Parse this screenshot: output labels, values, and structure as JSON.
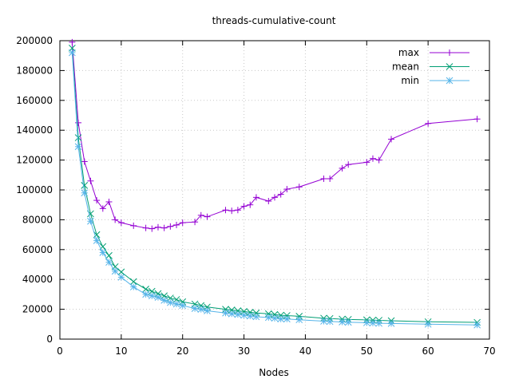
{
  "chart_data": {
    "type": "line",
    "title": "threads-cumulative-count",
    "xlabel": "Nodes",
    "ylabel": "",
    "xlim": [
      0,
      70
    ],
    "ylim": [
      0,
      200000
    ],
    "x_ticks": [
      "0",
      "10",
      "20",
      "30",
      "40",
      "50",
      "60",
      "70"
    ],
    "y_ticks": [
      "0",
      "20000",
      "40000",
      "60000",
      "80000",
      "100000",
      "120000",
      "140000",
      "160000",
      "180000",
      "200000"
    ],
    "grid": true,
    "legend_position": "top-right",
    "series": [
      {
        "name": "max",
        "color": "#9400d3",
        "marker": "plus",
        "points": [
          [
            2,
            199000
          ],
          [
            3,
            145000
          ],
          [
            4,
            119000
          ],
          [
            5,
            106000
          ],
          [
            6,
            93000
          ],
          [
            7,
            87500
          ],
          [
            8,
            92000
          ],
          [
            9,
            80000
          ],
          [
            10,
            78000
          ],
          [
            12,
            76000
          ],
          [
            14,
            74500
          ],
          [
            15,
            74000
          ],
          [
            16,
            75000
          ],
          [
            17,
            74500
          ],
          [
            18,
            75500
          ],
          [
            19,
            76500
          ],
          [
            20,
            78000
          ],
          [
            22,
            78500
          ],
          [
            23,
            83000
          ],
          [
            24,
            82000
          ],
          [
            27,
            86500
          ],
          [
            28,
            86000
          ],
          [
            29,
            86500
          ],
          [
            30,
            89000
          ],
          [
            31,
            90000
          ],
          [
            32,
            95000
          ],
          [
            34,
            92500
          ],
          [
            35,
            95000
          ],
          [
            36,
            97000
          ],
          [
            37,
            100500
          ],
          [
            39,
            102000
          ],
          [
            43,
            107500
          ],
          [
            44,
            107500
          ],
          [
            46,
            114500
          ],
          [
            47,
            117000
          ],
          [
            50,
            118500
          ],
          [
            51,
            121000
          ],
          [
            52,
            120000
          ],
          [
            54,
            134000
          ],
          [
            60,
            144500
          ],
          [
            68,
            147500
          ]
        ]
      },
      {
        "name": "mean",
        "color": "#009e73",
        "marker": "cross",
        "points": [
          [
            2,
            195000
          ],
          [
            3,
            135000
          ],
          [
            4,
            103000
          ],
          [
            5,
            84000
          ],
          [
            6,
            70000
          ],
          [
            7,
            62000
          ],
          [
            8,
            56000
          ],
          [
            9,
            48500
          ],
          [
            10,
            45000
          ],
          [
            12,
            38500
          ],
          [
            14,
            33500
          ],
          [
            15,
            32000
          ],
          [
            16,
            30500
          ],
          [
            17,
            29000
          ],
          [
            18,
            27500
          ],
          [
            19,
            26500
          ],
          [
            20,
            25000
          ],
          [
            22,
            23500
          ],
          [
            23,
            22500
          ],
          [
            24,
            21500
          ],
          [
            27,
            20000
          ],
          [
            28,
            19500
          ],
          [
            29,
            19000
          ],
          [
            30,
            18500
          ],
          [
            31,
            18000
          ],
          [
            32,
            17500
          ],
          [
            34,
            17000
          ],
          [
            35,
            16500
          ],
          [
            36,
            16000
          ],
          [
            37,
            15800
          ],
          [
            39,
            15300
          ],
          [
            43,
            14000
          ],
          [
            44,
            13800
          ],
          [
            46,
            13400
          ],
          [
            47,
            13200
          ],
          [
            50,
            12900
          ],
          [
            51,
            12700
          ],
          [
            52,
            12600
          ],
          [
            54,
            12300
          ],
          [
            60,
            11600
          ],
          [
            68,
            11200
          ]
        ]
      },
      {
        "name": "min",
        "color": "#56b4e9",
        "marker": "star",
        "points": [
          [
            2,
            192000
          ],
          [
            3,
            129000
          ],
          [
            4,
            98000
          ],
          [
            5,
            79000
          ],
          [
            6,
            66000
          ],
          [
            7,
            58000
          ],
          [
            8,
            51500
          ],
          [
            9,
            45500
          ],
          [
            10,
            41500
          ],
          [
            12,
            35000
          ],
          [
            14,
            30000
          ],
          [
            15,
            29000
          ],
          [
            16,
            28000
          ],
          [
            17,
            26000
          ],
          [
            18,
            24500
          ],
          [
            19,
            23500
          ],
          [
            20,
            22500
          ],
          [
            22,
            20500
          ],
          [
            23,
            20000
          ],
          [
            24,
            19000
          ],
          [
            27,
            17500
          ],
          [
            28,
            17000
          ],
          [
            29,
            16500
          ],
          [
            30,
            16000
          ],
          [
            31,
            15500
          ],
          [
            32,
            15000
          ],
          [
            34,
            14500
          ],
          [
            35,
            14000
          ],
          [
            36,
            13500
          ],
          [
            37,
            13500
          ],
          [
            39,
            13000
          ],
          [
            43,
            12000
          ],
          [
            44,
            11800
          ],
          [
            46,
            11500
          ],
          [
            47,
            11300
          ],
          [
            50,
            11000
          ],
          [
            51,
            10800
          ],
          [
            52,
            10600
          ],
          [
            54,
            10500
          ],
          [
            60,
            10000
          ],
          [
            68,
            9500
          ]
        ]
      }
    ]
  }
}
